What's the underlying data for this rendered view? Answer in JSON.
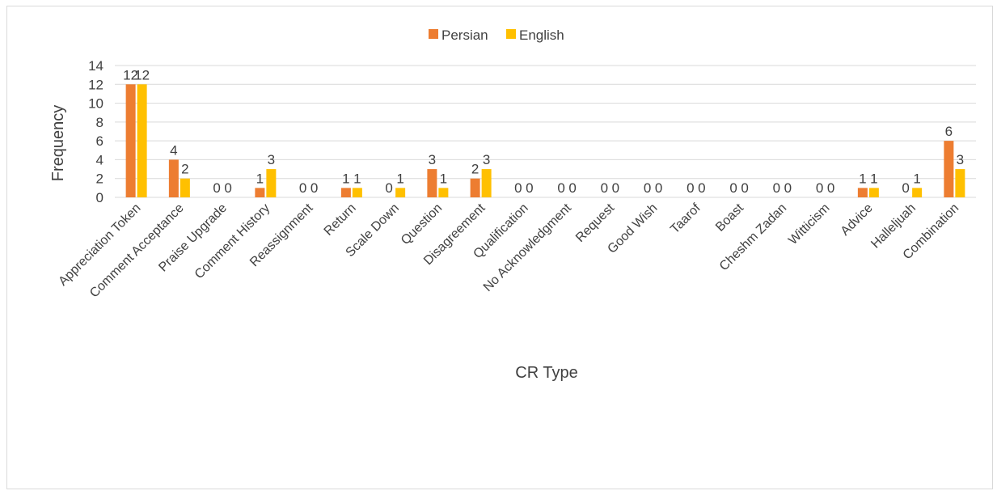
{
  "chart_data": {
    "type": "bar",
    "title": "",
    "xlabel": "CR Type",
    "ylabel": "Frequency",
    "ylim": [
      0,
      14
    ],
    "yticks": [
      0,
      2,
      4,
      6,
      8,
      10,
      12,
      14
    ],
    "grid": true,
    "legend_position": "top",
    "categories": [
      "Appreciation Token",
      "Comment Acceptance",
      "Praise Upgrade",
      "Comment History",
      "Reassignment",
      "Return",
      "Scale Down",
      "Question",
      "Disagreement",
      "Qualification",
      "No Acknowledgment",
      "Request",
      "Good Wish",
      "Taarof",
      "Boast",
      "Cheshm Zadan",
      "Witticism",
      "Advice",
      "Halleljuah",
      "Combination"
    ],
    "series": [
      {
        "name": "Persian",
        "color": "#ed7d31",
        "values": [
          12,
          4,
          0,
          1,
          0,
          1,
          0,
          3,
          2,
          0,
          0,
          0,
          0,
          0,
          0,
          0,
          0,
          1,
          0,
          6
        ]
      },
      {
        "name": "English",
        "color": "#ffc000",
        "values": [
          12,
          2,
          0,
          3,
          0,
          1,
          1,
          1,
          3,
          0,
          0,
          0,
          0,
          0,
          0,
          0,
          0,
          1,
          1,
          3
        ]
      }
    ]
  }
}
